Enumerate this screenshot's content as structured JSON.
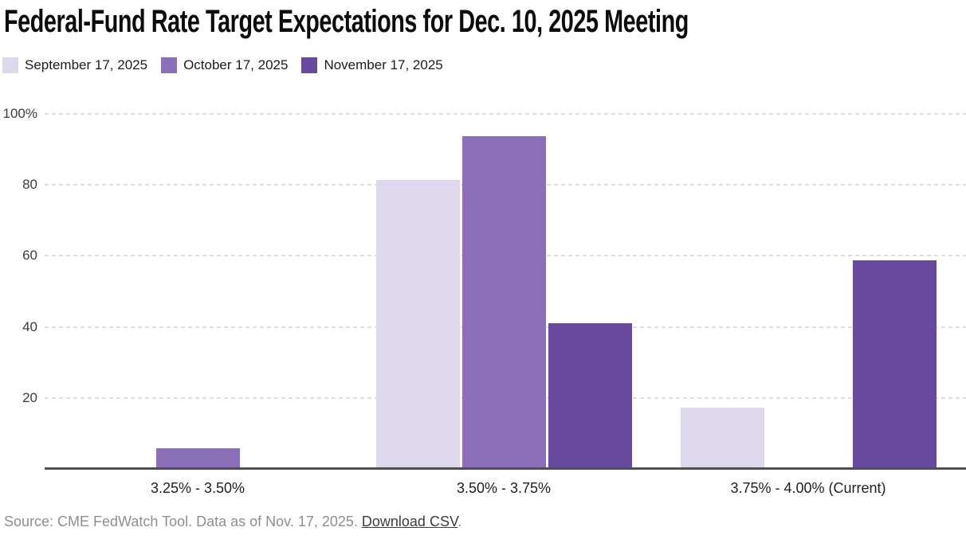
{
  "title": "Federal-Fund Rate Target Expectations for Dec. 10, 2025 Meeting",
  "legend": [
    {
      "label": "September 17, 2025",
      "color": "#ded8ec"
    },
    {
      "label": "October 17, 2025",
      "color": "#8b6fb8"
    },
    {
      "label": "November 17, 2025",
      "color": "#67499e"
    }
  ],
  "chart_data": {
    "type": "bar",
    "title": "Federal-Fund Rate Target Expectations for Dec. 10, 2025 Meeting",
    "categories": [
      "3.25% - 3.50%",
      "3.50% - 3.75%",
      "3.75% - 4.00% (Current)"
    ],
    "series": [
      {
        "name": "September 17, 2025",
        "color": "#ded8ec",
        "values": [
          0,
          81.2,
          17
        ]
      },
      {
        "name": "October 17, 2025",
        "color": "#8b6fb8",
        "values": [
          5.6,
          93.5,
          0
        ]
      },
      {
        "name": "November 17, 2025",
        "color": "#67499e",
        "values": [
          0,
          40.7,
          58.5
        ]
      }
    ],
    "xlabel": "",
    "ylabel": "",
    "ylim": [
      0,
      100
    ],
    "y_ticks": [
      "100%",
      "80",
      "60",
      "40",
      "20"
    ],
    "y_tick_values": [
      100,
      80,
      60,
      40,
      20
    ],
    "grid": "horizontal-dashed",
    "legend_position": "top-left",
    "gridline_color": "#dedede",
    "axis_line_color": "#4f4f4f"
  },
  "footer": {
    "source_text": "Source: CME FedWatch Tool. Data as of Nov. 17, 2025. ",
    "link_label": "Download CSV",
    "suffix": "."
  }
}
